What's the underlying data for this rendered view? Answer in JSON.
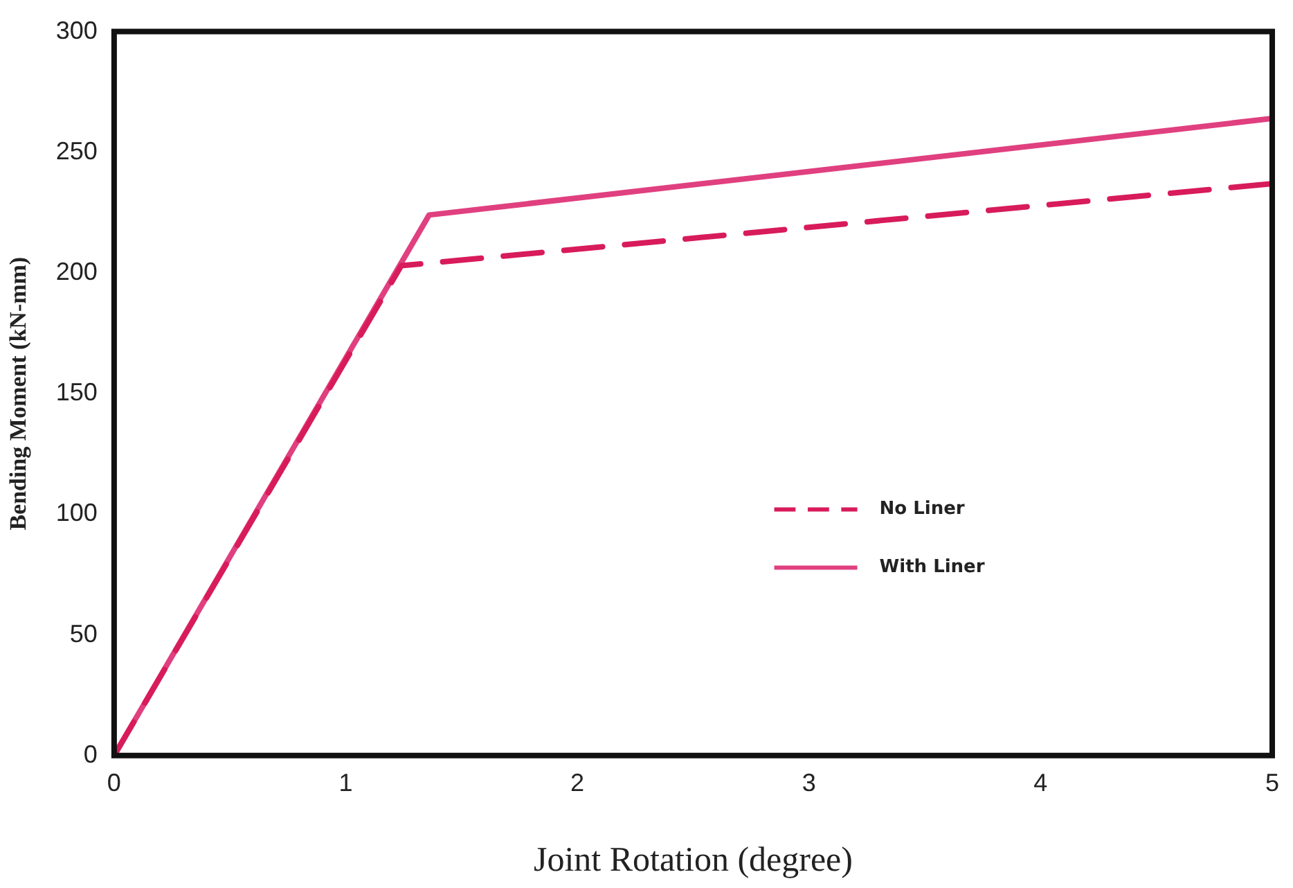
{
  "chart_data": {
    "type": "line",
    "xlabel": "Joint Rotation (degree)",
    "ylabel": "Bending Moment (kN-mm)",
    "xlim": [
      0,
      5
    ],
    "xticks": [
      0,
      1,
      2,
      3,
      4,
      5
    ],
    "ylim": [
      0,
      300
    ],
    "yticks": [
      0,
      50,
      100,
      150,
      200,
      250,
      300
    ],
    "grid": false,
    "legend": "center right",
    "marker": "none",
    "series": [
      {
        "name": "No Liner",
        "color": "#d81b5a",
        "line_style": "dashed",
        "x": [
          0,
          1.24,
          5
        ],
        "values": [
          0,
          203,
          237
        ]
      },
      {
        "name": "With Liner",
        "color": "#e0407f",
        "line_style": "solid",
        "x": [
          0,
          1.36,
          5
        ],
        "values": [
          0,
          224,
          264
        ]
      }
    ]
  }
}
